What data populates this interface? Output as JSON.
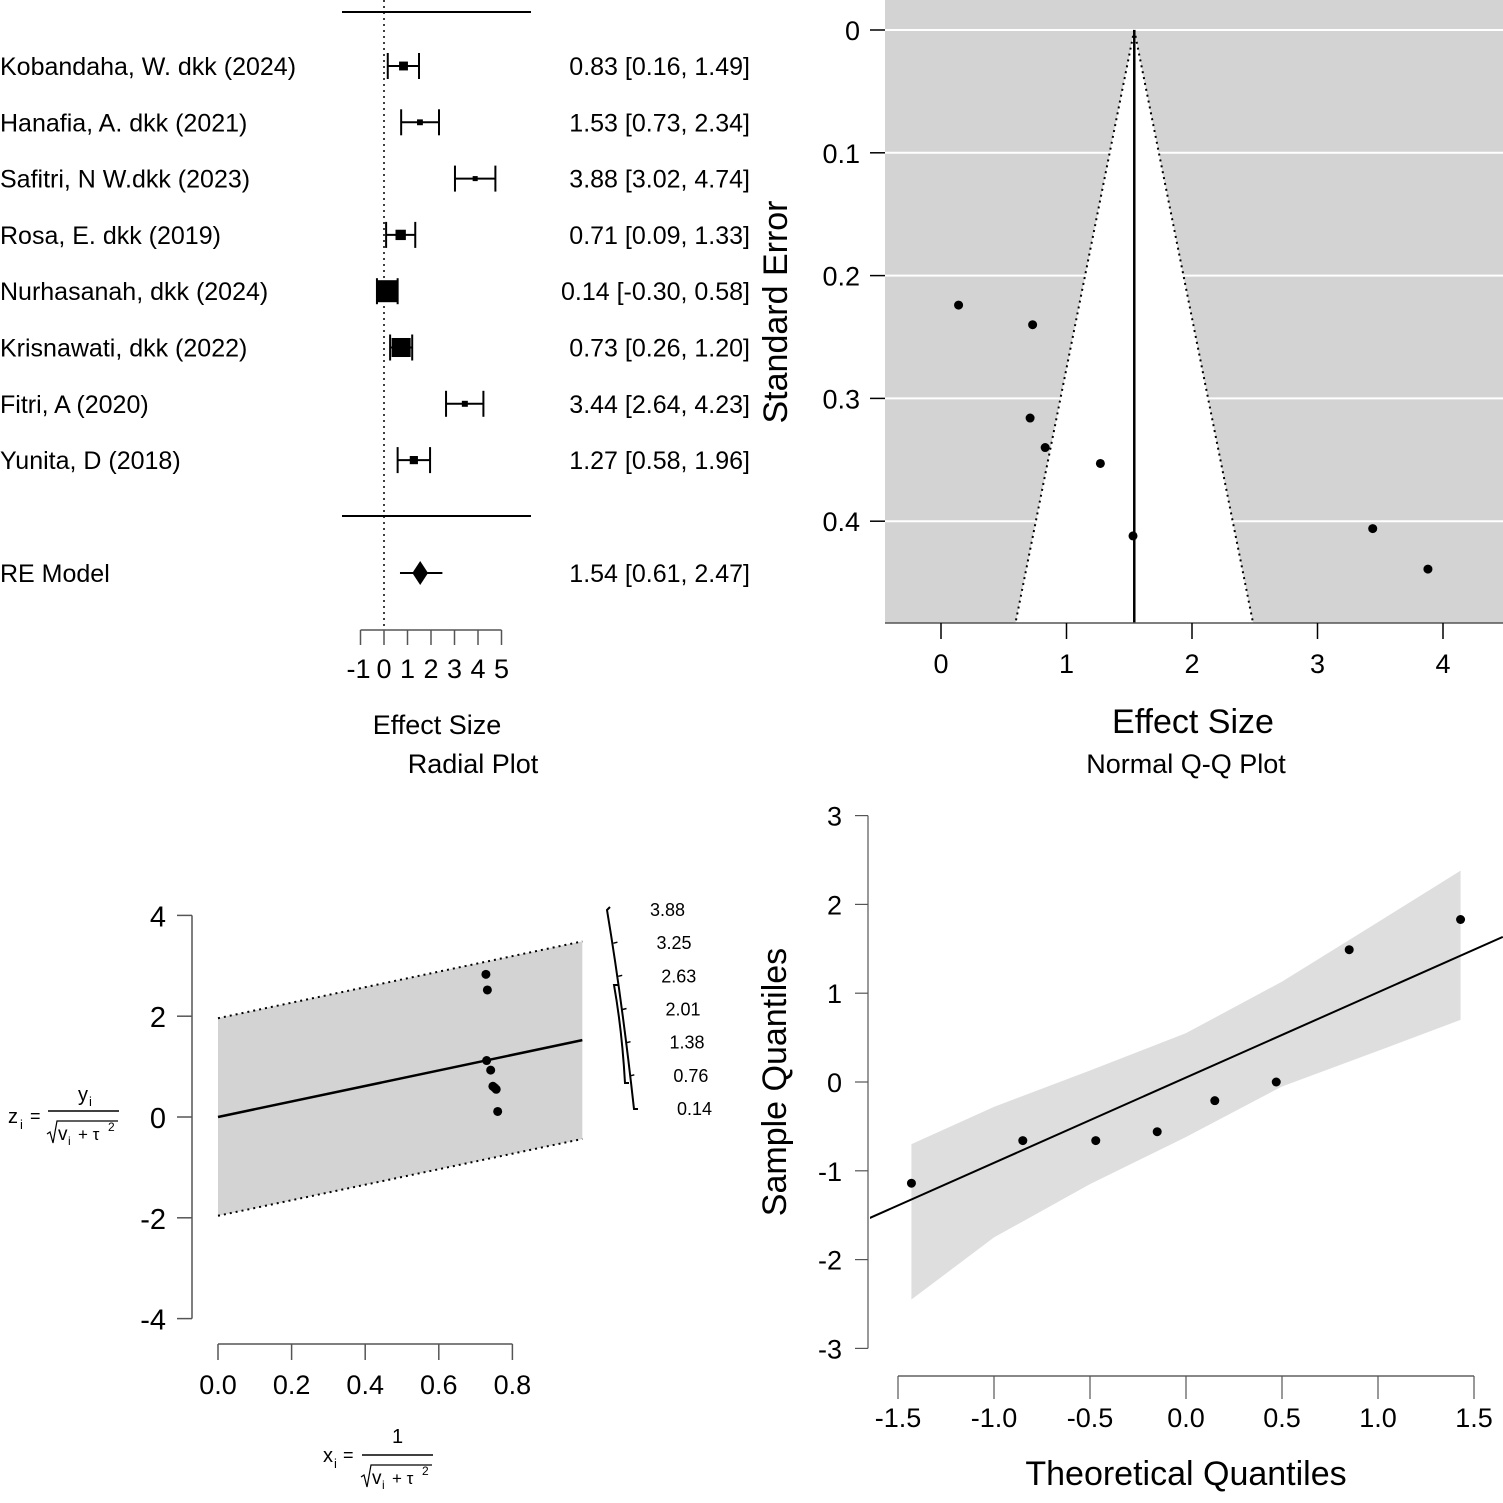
{
  "colors": {
    "ink": "#000000",
    "panel_gray": "#d3d3d3",
    "band_gray": "#d9d9d9",
    "gridline": "#ffffff",
    "axis": "#555555"
  },
  "chart_data": [
    {
      "type": "forest",
      "title": "",
      "xlabel": "Effect Size",
      "xlim": [
        -1,
        5
      ],
      "xticks": [
        -1,
        0,
        1,
        2,
        3,
        4,
        5
      ],
      "xtick_labels": [
        "-1",
        "0",
        "1",
        "2",
        "3",
        "4",
        "5"
      ],
      "reference_line": 0,
      "studies": [
        {
          "label": "Kobandaha, W. dkk (2024)",
          "estimate": 0.83,
          "ci_low": 0.16,
          "ci_high": 1.49,
          "text": "0.83 [0.16, 1.49]"
        },
        {
          "label": "Hanafia, A. dkk (2021)",
          "estimate": 1.53,
          "ci_low": 0.73,
          "ci_high": 2.34,
          "text": "1.53 [0.73, 2.34]"
        },
        {
          "label": "Safitri, N W.dkk (2023)",
          "estimate": 3.88,
          "ci_low": 3.02,
          "ci_high": 4.74,
          "text": "3.88 [3.02, 4.74]"
        },
        {
          "label": "Rosa, E. dkk (2019)",
          "estimate": 0.71,
          "ci_low": 0.09,
          "ci_high": 1.33,
          "text": "0.71 [0.09, 1.33]"
        },
        {
          "label": "Nurhasanah, dkk (2024)",
          "estimate": 0.14,
          "ci_low": -0.3,
          "ci_high": 0.58,
          "text": "0.14 [-0.30, 0.58]"
        },
        {
          "label": "Krisnawati, dkk (2022)",
          "estimate": 0.73,
          "ci_low": 0.26,
          "ci_high": 1.2,
          "text": "0.73 [0.26, 1.20]"
        },
        {
          "label": "Fitri, A (2020)",
          "estimate": 3.44,
          "ci_low": 2.64,
          "ci_high": 4.23,
          "text": "3.44 [2.64, 4.23]"
        },
        {
          "label": "Yunita, D (2018)",
          "estimate": 1.27,
          "ci_low": 0.58,
          "ci_high": 1.96,
          "text": "1.27 [0.58, 1.96]"
        }
      ],
      "summary": {
        "label": "RE Model",
        "estimate": 1.54,
        "ci_low": 0.61,
        "ci_high": 2.47,
        "pi_low": 0.68,
        "pi_high": 2.4,
        "text": "1.54 [0.61, 2.47]"
      }
    },
    {
      "type": "scatter",
      "subtype": "funnel",
      "title": "",
      "xlabel": "Effect Size",
      "ylabel": "Standard Error",
      "xlim": [
        -0.47,
        4.45
      ],
      "ylim": [
        0.483,
        -0.024
      ],
      "xticks": [
        0,
        1,
        2,
        3,
        4
      ],
      "xtick_labels": [
        "0",
        "1",
        "2",
        "3",
        "4"
      ],
      "yticks": [
        0,
        0.1,
        0.2,
        0.3,
        0.4
      ],
      "ytick_labels": [
        "0",
        "0.1",
        "0.2",
        "0.3",
        "0.4"
      ],
      "grid": true,
      "center": 1.54,
      "funnel_multiplier": 1.96,
      "points": [
        {
          "x": 0.14,
          "y": 0.224
        },
        {
          "x": 0.73,
          "y": 0.24
        },
        {
          "x": 0.71,
          "y": 0.316
        },
        {
          "x": 0.83,
          "y": 0.34
        },
        {
          "x": 1.27,
          "y": 0.353
        },
        {
          "x": 1.53,
          "y": 0.412
        },
        {
          "x": 3.44,
          "y": 0.406
        },
        {
          "x": 3.88,
          "y": 0.439
        }
      ]
    },
    {
      "type": "scatter",
      "subtype": "radial",
      "title": "Radial Plot",
      "xlabel": "x_i = 1 / sqrt(v_i + tau^2)",
      "ylabel": "z_i = y_i / sqrt(v_i + tau^2)",
      "xlabel_parts": {
        "lhs": "x",
        "sub": "i",
        "eq": "=",
        "num": "1",
        "den_v": "v",
        "den_sub": "i",
        "den_plus": "+ τ",
        "den_sup": "2"
      },
      "ylabel_parts": {
        "lhs": "z",
        "sub": "i",
        "eq": "=",
        "num": "y",
        "num_sub": "i",
        "den_v": "v",
        "den_sub": "i",
        "den_plus": "+ τ",
        "den_sup": "2"
      },
      "xlim": [
        0,
        0.8
      ],
      "ylim": [
        -4,
        4
      ],
      "xticks": [
        0.0,
        0.2,
        0.4,
        0.6,
        0.8
      ],
      "xtick_labels": [
        "0.0",
        "0.2",
        "0.4",
        "0.6",
        "0.8"
      ],
      "yticks": [
        4,
        2,
        0,
        -2,
        -4
      ],
      "ytick_labels": [
        "4",
        "2",
        "0",
        "-2",
        "-4"
      ],
      "region_xmax": 0.99,
      "slope": 1.54,
      "band_half_width": 1.96,
      "arc_labels": [
        "3.88",
        "3.25",
        "2.63",
        "2.01",
        "1.38",
        "0.76",
        "0.14"
      ],
      "points": [
        {
          "x": 0.728,
          "y": 2.83
        },
        {
          "x": 0.732,
          "y": 2.52
        },
        {
          "x": 0.73,
          "y": 1.12
        },
        {
          "x": 0.741,
          "y": 0.93
        },
        {
          "x": 0.747,
          "y": 0.61
        },
        {
          "x": 0.752,
          "y": 0.58
        },
        {
          "x": 0.756,
          "y": 0.55
        },
        {
          "x": 0.76,
          "y": 0.11
        }
      ]
    },
    {
      "type": "scatter",
      "subtype": "qq",
      "title": "Normal Q-Q Plot",
      "xlabel": "Theoretical Quantiles",
      "ylabel": "Sample Quantiles",
      "xlim": [
        -1.5,
        1.5
      ],
      "ylim": [
        -3,
        3
      ],
      "xticks": [
        -1.5,
        -1.0,
        -0.5,
        0.0,
        0.5,
        1.0,
        1.5
      ],
      "xtick_labels": [
        "-1.5",
        "-1.0",
        "-0.5",
        "0.0",
        "0.5",
        "1.0",
        "1.5"
      ],
      "yticks": [
        3,
        2,
        1,
        0,
        -1,
        -2,
        -3
      ],
      "ytick_labels": [
        "3",
        "2",
        "1",
        "0",
        "-1",
        "-2",
        "-3"
      ],
      "points": [
        {
          "x": -1.43,
          "y": -1.14
        },
        {
          "x": -0.85,
          "y": -0.66
        },
        {
          "x": -0.47,
          "y": -0.66
        },
        {
          "x": -0.15,
          "y": -0.56
        },
        {
          "x": 0.15,
          "y": -0.21
        },
        {
          "x": 0.47,
          "y": 0.0
        },
        {
          "x": 0.85,
          "y": 1.49
        },
        {
          "x": 1.43,
          "y": 1.83
        }
      ],
      "line": {
        "intercept": 0.05,
        "slope": 0.96
      },
      "band": {
        "x": [
          -1.43,
          -1.0,
          -0.5,
          0.0,
          0.5,
          1.0,
          1.43
        ],
        "upper": [
          -0.7,
          -0.28,
          0.13,
          0.55,
          1.13,
          1.8,
          2.38
        ],
        "lower": [
          -2.45,
          -1.75,
          -1.15,
          -0.62,
          -0.05,
          0.35,
          0.7
        ]
      }
    }
  ]
}
